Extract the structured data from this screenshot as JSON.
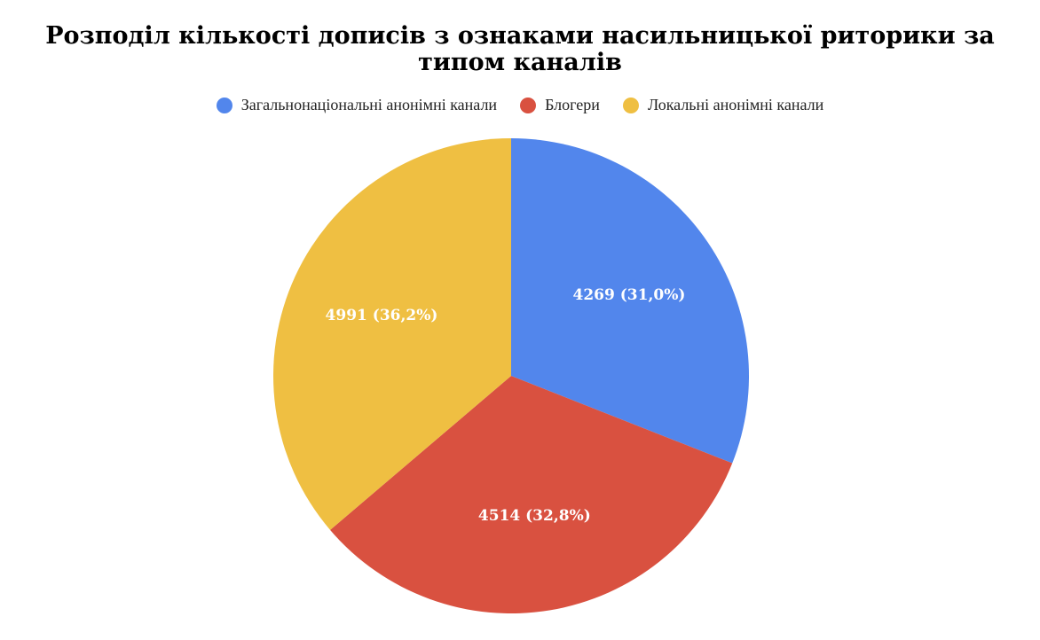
{
  "chart_data": {
    "type": "pie",
    "title": "Розподіл кількості дописів з ознаками насильницької риторики за типом каналів",
    "legend_position": "top",
    "slices": [
      {
        "label": "Загальнонаціональні анонімні канали",
        "value": 4269,
        "percent_label": "31,0%",
        "display": "4269 (31,0%)",
        "color": "#5286EC"
      },
      {
        "label": "Блогери",
        "value": 4514,
        "percent_label": "32,8%",
        "display": "4514 (32,8%)",
        "color": "#D95140"
      },
      {
        "label": "Локальні анонімні канали",
        "value": 4991,
        "percent_label": "36,2%",
        "display": "4991 (36,2%)",
        "color": "#EFBF42"
      }
    ]
  }
}
